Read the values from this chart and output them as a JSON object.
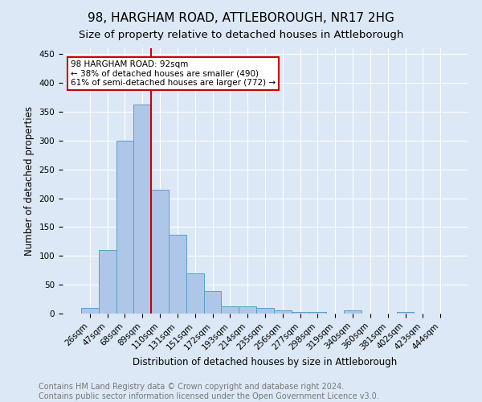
{
  "title": "98, HARGHAM ROAD, ATTLEBOROUGH, NR17 2HG",
  "subtitle": "Size of property relative to detached houses in Attleborough",
  "xlabel": "Distribution of detached houses by size in Attleborough",
  "ylabel": "Number of detached properties",
  "bar_values": [
    10,
    110,
    300,
    363,
    215,
    137,
    70,
    39,
    13,
    12,
    10,
    6,
    3,
    3,
    0,
    5,
    0,
    0,
    3,
    0,
    0
  ],
  "bar_labels": [
    "26sqm",
    "47sqm",
    "68sqm",
    "89sqm",
    "110sqm",
    "131sqm",
    "151sqm",
    "172sqm",
    "193sqm",
    "214sqm",
    "235sqm",
    "256sqm",
    "277sqm",
    "298sqm",
    "319sqm",
    "340sqm",
    "360sqm",
    "381sqm",
    "402sqm",
    "423sqm",
    "444sqm"
  ],
  "bar_color": "#aec6e8",
  "bar_edge_color": "#5a9fc8",
  "vline_x": 3.5,
  "vline_color": "#cc0000",
  "annotation_text": "98 HARGHAM ROAD: 92sqm\n← 38% of detached houses are smaller (490)\n61% of semi-detached houses are larger (772) →",
  "annotation_box_color": "#ffffff",
  "annotation_box_edge_color": "#cc0000",
  "ylim_max": 460,
  "yticks": [
    0,
    50,
    100,
    150,
    200,
    250,
    300,
    350,
    400,
    450
  ],
  "footer_text": "Contains HM Land Registry data © Crown copyright and database right 2024.\nContains public sector information licensed under the Open Government Licence v3.0.",
  "background_color": "#dce8f5",
  "grid_color": "#ffffff",
  "title_fontsize": 11,
  "subtitle_fontsize": 9.5,
  "xlabel_fontsize": 8.5,
  "ylabel_fontsize": 8.5,
  "tick_fontsize": 7.5,
  "footer_fontsize": 7,
  "annot_fontsize": 7.5
}
